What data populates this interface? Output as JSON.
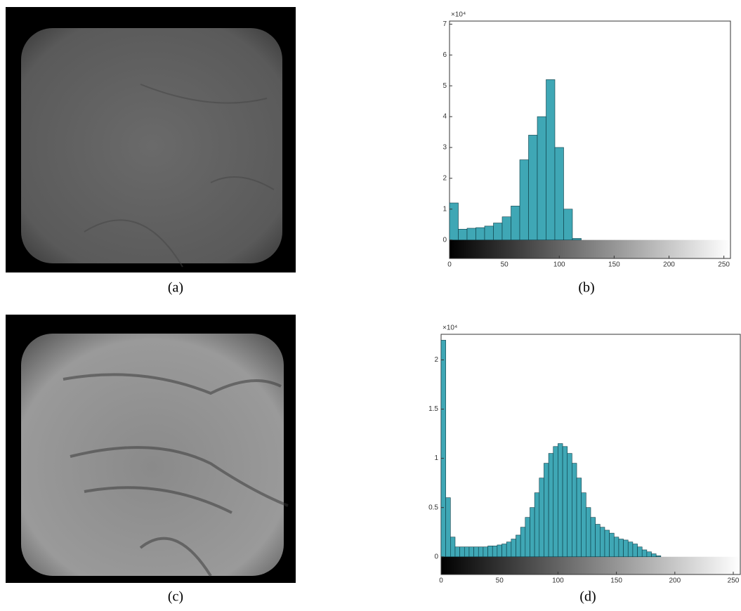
{
  "captions": [
    "(a)",
    "(b)",
    "(c)",
    "(d)"
  ],
  "chart_data": [
    {
      "type": "histogram",
      "y_multiplier": "×10⁴",
      "color": "#3fa7b5",
      "bins": [
        0,
        8,
        16,
        24,
        32,
        40,
        48,
        56,
        64,
        72,
        80,
        88,
        96,
        104,
        112,
        120,
        128,
        136,
        144,
        152,
        160,
        168,
        176,
        184,
        192,
        200,
        208,
        216,
        224,
        232,
        240,
        248,
        256
      ],
      "values": [
        1.2,
        0.35,
        0.38,
        0.4,
        0.45,
        0.55,
        0.75,
        1.1,
        2.6,
        3.4,
        4.0,
        5.2,
        3.0,
        1.0,
        0.05,
        0,
        0,
        0,
        0,
        0,
        0,
        0,
        0,
        0,
        0,
        0,
        0,
        0,
        0,
        0,
        0,
        0
      ],
      "xlim": [
        0,
        256
      ],
      "ylim": [
        -0.6,
        7.1
      ],
      "xticks": [
        0,
        50,
        100,
        150,
        200,
        250
      ],
      "yticks": [
        0,
        1,
        2,
        3,
        4,
        5,
        6,
        7
      ]
    },
    {
      "type": "histogram",
      "y_multiplier": "×10⁴",
      "color": "#3fa7b5",
      "bins": [
        0,
        4,
        8,
        12,
        16,
        20,
        24,
        28,
        32,
        36,
        40,
        44,
        48,
        52,
        56,
        60,
        64,
        68,
        72,
        76,
        80,
        84,
        88,
        92,
        96,
        100,
        104,
        108,
        112,
        116,
        120,
        124,
        128,
        132,
        136,
        140,
        144,
        148,
        152,
        156,
        160,
        164,
        168,
        172,
        176,
        180,
        184,
        188,
        192,
        196,
        200,
        204,
        208,
        212,
        216,
        220,
        224,
        228,
        232,
        236,
        240,
        244,
        248,
        252,
        256
      ],
      "values": [
        2.2,
        0.6,
        0.2,
        0.1,
        0.1,
        0.1,
        0.1,
        0.1,
        0.1,
        0.1,
        0.11,
        0.11,
        0.12,
        0.13,
        0.15,
        0.18,
        0.22,
        0.3,
        0.4,
        0.5,
        0.65,
        0.8,
        0.95,
        1.05,
        1.12,
        1.15,
        1.12,
        1.05,
        0.95,
        0.8,
        0.65,
        0.5,
        0.4,
        0.33,
        0.3,
        0.27,
        0.24,
        0.2,
        0.18,
        0.17,
        0.15,
        0.13,
        0.1,
        0.07,
        0.05,
        0.03,
        0.01,
        0,
        0,
        0,
        0,
        0,
        0,
        0,
        0,
        0,
        0,
        0,
        0,
        0,
        0,
        0,
        0,
        0
      ],
      "xlim": [
        0,
        256
      ],
      "ylim": [
        -0.18,
        2.26
      ],
      "xticks": [
        0,
        50,
        100,
        150,
        200,
        250
      ],
      "yticks": [
        0,
        0.5,
        1,
        1.5,
        2
      ]
    }
  ]
}
